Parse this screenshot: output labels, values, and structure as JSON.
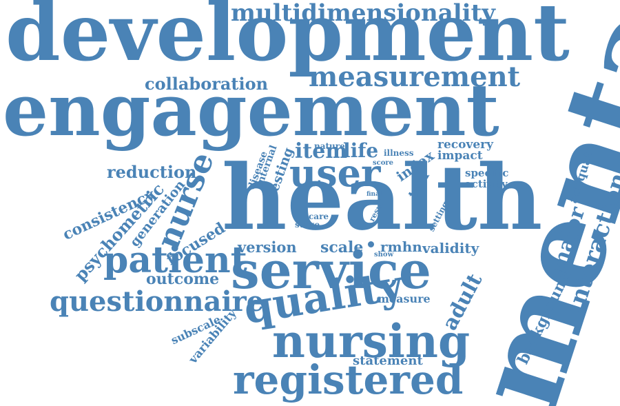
{
  "cloud": {
    "color": "#4a83b6",
    "words": [
      "development",
      "engagement",
      "multidimensionality",
      "measurement",
      "collaboration",
      "mental",
      "health",
      "service",
      "user",
      "item",
      "life",
      "nursing",
      "quality",
      "registered",
      "patient",
      "questionnaire",
      "outcome",
      "nurse",
      "reduction",
      "consistency",
      "psychometric",
      "generation",
      "focused",
      "version",
      "scale",
      "rmhn",
      "validity",
      "interaction",
      "major",
      "adequate",
      "specific",
      "activity",
      "recovery",
      "impact",
      "index",
      "tool",
      "testing",
      "internal",
      "disease",
      "nature",
      "illness",
      "score",
      "final",
      "result",
      "care",
      "stage",
      "setting",
      "show",
      "adult",
      "background",
      "measure",
      "statement",
      "subscale",
      "variability"
    ]
  }
}
